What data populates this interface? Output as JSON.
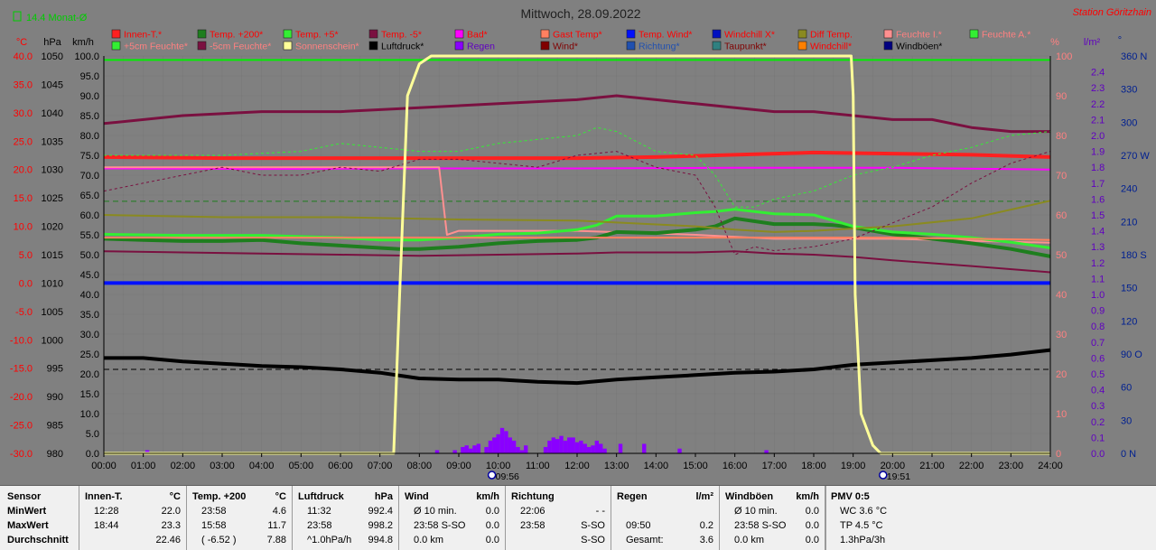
{
  "title": "Mittwoch, 28.09.2022",
  "station": "Station Göritzhain",
  "month_avg_label": "14.4 Monat-Ø",
  "colors": {
    "innen": "#ff2020",
    "temp200": "#1e7e1e",
    "temp5": "#33ee33",
    "tempm5": "#7a1040",
    "bad": "#ff00ff",
    "gast": "#ff8060",
    "tempwind": "#0010ff",
    "windchillx": "#0010c0",
    "difftemp": "#8a8a20",
    "feuchte_i": "#ff9090",
    "feuchte_a": "#33ee33",
    "feuchte5": "#33ee33",
    "feuchtem5": "#7a1040",
    "sonne": "#ffff99",
    "luftdruck": "#000000",
    "regen": "#8a00ff",
    "wind": "#800000",
    "richtung": "#2050b0",
    "taupunkt": "#308080",
    "windchill": "#ff8000",
    "windboeen": "#000080",
    "axis_red": "#ff0000",
    "axis_black": "#000000",
    "axis_pink": "#ff8080",
    "axis_purple": "#6000c0",
    "axis_blue": "#002090",
    "plot_bg": "#808080",
    "hline": "#00ee00"
  },
  "legend": [
    {
      "label": "Innen-T.*",
      "color": "#ff2020",
      "text_color": "#ff0000"
    },
    {
      "label": "Temp. +200*",
      "color": "#1e7e1e",
      "text_color": "#ff0000"
    },
    {
      "label": "Temp. +5*",
      "color": "#33ee33",
      "text_color": "#ff0000"
    },
    {
      "label": "Temp. -5*",
      "color": "#7a1040",
      "text_color": "#ff0000"
    },
    {
      "label": "Bad*",
      "color": "#ff00ff",
      "text_color": "#ff0000"
    },
    {
      "label": "Gast Temp*",
      "color": "#ff8060",
      "text_color": "#ff0000"
    },
    {
      "label": "Temp. Wind*",
      "color": "#0010ff",
      "text_color": "#ff0000"
    },
    {
      "label": "Windchill X*",
      "color": "#0010c0",
      "text_color": "#ff0000"
    },
    {
      "label": "Diff Temp.",
      "color": "#8a8a20",
      "text_color": "#ff0000"
    },
    {
      "label": "Feuchte I.*",
      "color": "#ff9090",
      "text_color": "#ff8080"
    },
    {
      "label": "Feuchte A.*",
      "color": "#33ee33",
      "text_color": "#ff8080"
    },
    {
      "label": "+5cm Feuchte*",
      "color": "#33ee33",
      "text_color": "#ff8080"
    },
    {
      "label": "-5cm Feuchte*",
      "color": "#7a1040",
      "text_color": "#ff8080"
    },
    {
      "label": "Sonnenschein*",
      "color": "#ffff99",
      "text_color": "#ff8080"
    },
    {
      "label": "Luftdruck*",
      "color": "#000000",
      "text_color": "#000000"
    },
    {
      "label": "Regen",
      "color": "#8a00ff",
      "text_color": "#6000c0"
    },
    {
      "label": "Wind*",
      "color": "#800000",
      "text_color": "#800000"
    },
    {
      "label": "Richtung*",
      "color": "#2050b0",
      "text_color": "#2050b0"
    },
    {
      "label": "Taupunkt*",
      "color": "#308080",
      "text_color": "#800000"
    },
    {
      "label": "Windchill*",
      "color": "#ff8000",
      "text_color": "#ff0000"
    },
    {
      "label": "Windböen*",
      "color": "#000080",
      "text_color": "#000000"
    }
  ],
  "chart_data": {
    "type": "line",
    "title": "Mittwoch, 28.09.2022",
    "x_ticks": [
      "00:00",
      "01:00",
      "02:00",
      "03:00",
      "04:00",
      "05:00",
      "06:00",
      "07:00",
      "08:00",
      "09:00",
      "10:00",
      "11:00",
      "12:00",
      "13:00",
      "14:00",
      "15:00",
      "16:00",
      "17:00",
      "18:00",
      "19:00",
      "20:00",
      "21:00",
      "22:00",
      "23:00",
      "24:00"
    ],
    "xlim": [
      0,
      24
    ],
    "sunrise": {
      "x": 9.93,
      "label": "09:56"
    },
    "sunset": {
      "x": 19.85,
      "label": "19:51"
    },
    "axes": {
      "temp_c": {
        "unit": "°C",
        "min": -30,
        "max": 40,
        "ticks": [
          "40.0",
          "35.0",
          "30.0",
          "25.0",
          "20.0",
          "15.0",
          "10.0",
          "5.0",
          "0.0",
          "-5.0",
          "-10.0",
          "-15.0",
          "-20.0",
          "-25.0",
          "-30.0"
        ]
      },
      "pressure_hpa": {
        "unit": "hPa",
        "min": 980,
        "max": 1050,
        "ticks": [
          "1050",
          "1045",
          "1040",
          "1035",
          "1030",
          "1025",
          "1020",
          "1015",
          "1010",
          "1005",
          "1000",
          "995",
          "990",
          "985",
          "980"
        ]
      },
      "wind_kmh": {
        "unit": "km/h",
        "min": 0,
        "max": 100,
        "ticks": [
          "100.0",
          "95.0",
          "90.0",
          "85.0",
          "80.0",
          "75.0",
          "70.0",
          "65.0",
          "60.0",
          "55.0",
          "50.0",
          "45.0",
          "40.0",
          "35.0",
          "30.0",
          "25.0",
          "20.0",
          "15.0",
          "10.0",
          "5.0",
          "0.0"
        ]
      },
      "humidity_pct": {
        "unit": "%",
        "min": 0,
        "max": 100,
        "ticks": [
          "100",
          "90",
          "80",
          "70",
          "60",
          "50",
          "40",
          "30",
          "20",
          "10",
          "0"
        ]
      },
      "rain_lm2": {
        "unit": "l/m²",
        "min": 0,
        "max": 2.5,
        "ticks": [
          "2.4",
          "2.3",
          "2.2",
          "2.1",
          "2.0",
          "1.9",
          "1.8",
          "1.7",
          "1.6",
          "1.5",
          "1.4",
          "1.3",
          "1.2",
          "1.1",
          "1.0",
          "0.9",
          "0.8",
          "0.7",
          "0.6",
          "0.5",
          "0.4",
          "0.3",
          "0.2",
          "0.1",
          "0.0"
        ]
      },
      "direction_deg": {
        "unit": "°",
        "min": 0,
        "max": 360,
        "ticks": [
          "360 N",
          "330",
          "300",
          "270 W",
          "240",
          "210",
          "180 S",
          "150",
          "120",
          "90 O",
          "60",
          "30",
          "0 N"
        ]
      }
    },
    "series": [
      {
        "name": "Innen-T.*",
        "axis": "temp_c",
        "key": "innen",
        "width": 4,
        "x": [
          0,
          3,
          6,
          9,
          12,
          14,
          16,
          18,
          20,
          22,
          24
        ],
        "y": [
          22.2,
          22.0,
          22.0,
          22.0,
          22.0,
          22.2,
          22.6,
          23.0,
          22.8,
          22.6,
          22.2
        ]
      },
      {
        "name": "Bad*",
        "axis": "temp_c",
        "key": "bad",
        "width": 2,
        "x": [
          0,
          4,
          8,
          12,
          16,
          20,
          24
        ],
        "y": [
          20.2,
          20.1,
          20.2,
          20.2,
          20.3,
          20.3,
          20.0
        ]
      },
      {
        "name": "Feuchte I.*",
        "axis": "humidity_pct",
        "key": "feuchte_i",
        "width": 2,
        "x": [
          0,
          4,
          8,
          8.5,
          8.7,
          9,
          12,
          15,
          17,
          20,
          24
        ],
        "y": [
          72,
          72,
          72,
          72,
          55,
          56,
          56,
          55,
          54,
          54,
          53
        ]
      },
      {
        "name": "Temp. +200*",
        "axis": "temp_c",
        "key": "temp200",
        "width": 4,
        "x": [
          0,
          1,
          2,
          3,
          4,
          5,
          6,
          7,
          7.5,
          8,
          9,
          10,
          11,
          12,
          12.5,
          13,
          14,
          15,
          15.5,
          16,
          17,
          18,
          18.5,
          19,
          20,
          21,
          22,
          23,
          24
        ],
        "y": [
          7.8,
          7.6,
          7.4,
          7.4,
          7.6,
          7.0,
          6.6,
          6.2,
          6.0,
          6.0,
          6.4,
          7.0,
          7.4,
          7.6,
          8.0,
          9.0,
          8.8,
          9.4,
          10.0,
          11.4,
          10.4,
          10.4,
          10.2,
          9.8,
          8.6,
          7.8,
          7.0,
          6.0,
          4.7
        ]
      },
      {
        "name": "Temp. +5*",
        "axis": "temp_c",
        "key": "temp5",
        "width": 3,
        "x": [
          0,
          2,
          4,
          6,
          7,
          8,
          9,
          10,
          11,
          12,
          12.5,
          13,
          14,
          15,
          15.5,
          16,
          17,
          18,
          19,
          20,
          21,
          22,
          23,
          24
        ],
        "y": [
          8.6,
          8.4,
          8.4,
          8.0,
          7.6,
          7.6,
          8.0,
          8.6,
          8.8,
          9.4,
          10.2,
          11.8,
          11.8,
          12.4,
          12.6,
          13.0,
          12.2,
          12.0,
          10.0,
          9.0,
          8.6,
          8.0,
          7.2,
          6.2
        ]
      },
      {
        "name": "Diff Temp.",
        "axis": "temp_c",
        "key": "difftemp",
        "width": 2,
        "x": [
          0,
          3,
          6,
          9,
          12,
          15,
          16,
          17,
          18,
          20,
          22,
          24
        ],
        "y": [
          12.0,
          11.6,
          11.6,
          11.2,
          11.0,
          10.0,
          9.4,
          9.0,
          9.2,
          10.0,
          11.4,
          14.5
        ]
      },
      {
        "name": "Temp. -5*",
        "axis": "temp_c",
        "key": "tempm5",
        "width": 2,
        "x": [
          0,
          2,
          4,
          6,
          8,
          10,
          12,
          13,
          14,
          15,
          16,
          17,
          18,
          19,
          20,
          22,
          24
        ],
        "y": [
          5.6,
          5.4,
          5.2,
          5.0,
          4.8,
          5.0,
          5.2,
          5.4,
          5.4,
          5.4,
          5.6,
          5.2,
          5.0,
          4.6,
          4.0,
          3.0,
          1.9
        ]
      },
      {
        "name": "Gast Temp*",
        "axis": "temp_c",
        "key": "gast",
        "width": 2,
        "x": [
          0,
          4,
          8,
          12,
          16,
          20,
          24
        ],
        "y": [
          8.0,
          8.0,
          8.0,
          8.0,
          8.0,
          8.0,
          7.6
        ]
      },
      {
        "name": "Luftdruck*",
        "axis": "pressure_hpa",
        "key": "luftdruck",
        "width": 4,
        "x": [
          0,
          1,
          2,
          3,
          4,
          5,
          6,
          7,
          8,
          9,
          10,
          11,
          12,
          13,
          14,
          15,
          16,
          17,
          18,
          19,
          20,
          21,
          22,
          23,
          24
        ],
        "y": [
          996.8,
          996.8,
          996.2,
          995.8,
          995.4,
          995.2,
          994.8,
          994.2,
          993.2,
          993.0,
          993.0,
          992.6,
          992.4,
          993.0,
          993.4,
          993.8,
          994.2,
          994.4,
          994.8,
          995.6,
          996.0,
          996.4,
          996.8,
          997.4,
          998.2
        ]
      },
      {
        "name": "-5cm Feuchte*",
        "axis": "humidity_pct",
        "key": "feuchtem5",
        "width": 3,
        "x": [
          0,
          2,
          4,
          6,
          8,
          10,
          12,
          13,
          14,
          15,
          16,
          17,
          18,
          19,
          20,
          21,
          22,
          23,
          24
        ],
        "y": [
          83,
          85,
          86,
          86,
          87,
          88,
          89,
          90,
          89,
          88,
          87,
          86,
          86,
          85,
          84,
          84,
          82,
          81,
          81
        ]
      },
      {
        "name": "+5cm Feuchte*",
        "axis": "humidity_pct",
        "key": "feuchte5",
        "width": 1,
        "dash": "3,3",
        "x": [
          0,
          3,
          5,
          6,
          7,
          8,
          9,
          10,
          11,
          12,
          12.5,
          13,
          14,
          15,
          15.5,
          16,
          16.5,
          17,
          18,
          19,
          20,
          21,
          22,
          23,
          24
        ],
        "y": [
          75,
          75,
          76,
          78,
          77,
          76,
          76,
          78,
          79,
          80,
          82,
          81,
          76,
          75,
          70,
          62,
          62,
          64,
          66,
          70,
          72,
          75,
          77,
          80,
          81
        ]
      },
      {
        "name": "Taupunkt*",
        "axis": "humidity_pct",
        "key": "tempm5",
        "width": 1,
        "dash": "3,3",
        "x": [
          0,
          1,
          2,
          3,
          4,
          5,
          6,
          7,
          8,
          9,
          10,
          11,
          12,
          13,
          14,
          15,
          15.5,
          16,
          16.5,
          17,
          18,
          19,
          20,
          21,
          22,
          23,
          24
        ],
        "y": [
          66,
          68,
          70,
          72,
          70,
          70,
          72,
          71,
          74,
          74,
          73,
          72,
          75,
          76,
          72,
          70,
          62,
          50,
          52,
          51,
          52,
          54,
          58,
          62,
          68,
          73,
          76
        ]
      },
      {
        "name": "Windchill X*",
        "axis": "temp_c",
        "key": "tempwind",
        "width": 4,
        "x": [
          0,
          24
        ],
        "y": [
          0.0,
          0.0
        ]
      },
      {
        "name": "Sonnenschein*",
        "axis": "humidity_pct",
        "key": "sonne",
        "width": 3,
        "x": [
          0,
          7.35,
          7.5,
          7.7,
          8.0,
          8.3,
          12,
          16,
          18,
          18.95,
          19.0,
          19.05,
          19.2,
          19.5,
          19.7,
          24
        ],
        "y": [
          0,
          0,
          40,
          90,
          98,
          100,
          100,
          100,
          100,
          100,
          90,
          40,
          10,
          2,
          0,
          0
        ]
      }
    ],
    "hlines": [
      {
        "axis": "wind_kmh",
        "y": 99,
        "key": "hline",
        "width": 2
      },
      {
        "axis": "temp_c",
        "y": 14.4,
        "key": "temp200",
        "width": 1,
        "dash": "6,4"
      },
      {
        "axis": "pressure_hpa",
        "y": 994.8,
        "key": "luftdruck",
        "width": 1,
        "dash": "6,4"
      }
    ],
    "rain_bars": {
      "axis": "rain_lm2",
      "x": [
        1.1,
        8.45,
        8.9,
        9.1,
        9.2,
        9.3,
        9.4,
        9.5,
        9.7,
        9.8,
        9.9,
        10.0,
        10.1,
        10.2,
        10.3,
        10.4,
        10.5,
        10.6,
        10.7,
        11.2,
        11.3,
        11.4,
        11.5,
        11.6,
        11.7,
        11.8,
        11.9,
        12.0,
        12.1,
        12.2,
        12.3,
        12.4,
        12.5,
        12.6,
        12.7,
        13.1,
        13.7,
        14.6,
        16.8
      ],
      "y": [
        0.02,
        0.02,
        0.02,
        0.04,
        0.05,
        0.03,
        0.05,
        0.06,
        0.04,
        0.08,
        0.1,
        0.12,
        0.16,
        0.14,
        0.1,
        0.08,
        0.04,
        0.02,
        0.05,
        0.04,
        0.08,
        0.1,
        0.09,
        0.11,
        0.08,
        0.1,
        0.1,
        0.07,
        0.08,
        0.06,
        0.04,
        0.05,
        0.08,
        0.06,
        0.03,
        0.06,
        0.06,
        0.03,
        0.02
      ]
    }
  },
  "stats": {
    "row_labels": [
      "Sensor",
      "MinWert",
      "MaxWert",
      "Durchschnitt"
    ],
    "columns": [
      {
        "title": "Innen-T.",
        "unit": "°C",
        "rows": [
          [
            "12:28",
            "22.0"
          ],
          [
            "18:44",
            "23.3"
          ],
          [
            "",
            "22.46"
          ]
        ]
      },
      {
        "title": "Temp. +200",
        "unit": "°C",
        "rows": [
          [
            "23:58",
            "4.6"
          ],
          [
            "15:58",
            "11.7"
          ],
          [
            "( -6.52 )",
            "7.88"
          ]
        ]
      },
      {
        "title": "Luftdruck",
        "unit": "hPa",
        "rows": [
          [
            "11:32",
            "992.4"
          ],
          [
            "23:58",
            "998.2"
          ],
          [
            "^1.0hPa/h",
            "994.8"
          ]
        ]
      },
      {
        "title": "Wind",
        "unit": "km/h",
        "rows": [
          [
            "Ø 10 min.",
            "0.0"
          ],
          [
            "23:58    S-SO",
            "0.0"
          ],
          [
            "0.0 km",
            "0.0"
          ]
        ]
      },
      {
        "title": "Richtung",
        "unit": "",
        "rows": [
          [
            "22:06",
            "- -"
          ],
          [
            "23:58",
            "S-SO"
          ],
          [
            "",
            "S-SO"
          ]
        ]
      },
      {
        "title": "Regen",
        "unit": "l/m²",
        "rows": [
          [
            "",
            ""
          ],
          [
            "09:50",
            "0.2"
          ],
          [
            "Gesamt:",
            "3.6"
          ]
        ]
      },
      {
        "title": "Windböen",
        "unit": "km/h",
        "rows": [
          [
            "Ø 10 min.",
            "0.0"
          ],
          [
            "23:58    S-SO",
            "0.0"
          ],
          [
            "0.0 km",
            "0.0"
          ]
        ]
      },
      {
        "title": "PMV 0:5",
        "unit": "",
        "rows": [
          [
            "WC 3.6 °C",
            ""
          ],
          [
            "TP 4.5 °C",
            ""
          ],
          [
            "1.3hPa/3h",
            ""
          ]
        ]
      }
    ]
  }
}
